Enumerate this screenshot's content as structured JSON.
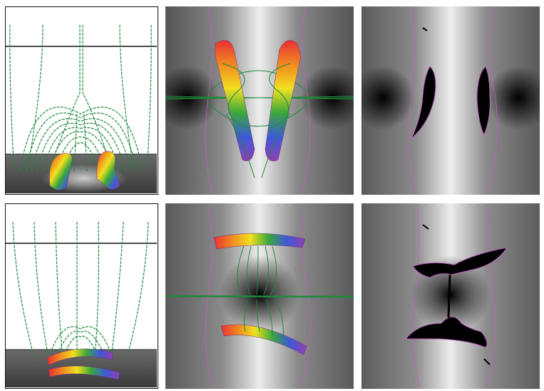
{
  "figure": {
    "rows": [
      {
        "id": "row-1",
        "panels": [
          "side-view",
          "top-view-field-lines",
          "top-view-shading"
        ]
      },
      {
        "id": "row-2",
        "panels": [
          "side-view",
          "top-view-field-lines",
          "top-view-shading"
        ]
      }
    ]
  },
  "colors": {
    "field_line": "#1e8a3c",
    "separatrix": "#c060c0",
    "background_white": "#ffffff",
    "shading_dark": "#000000",
    "shading_light": "#f2f2f2",
    "rainbow": [
      "#e83030",
      "#f08a20",
      "#f2e020",
      "#3aa83a",
      "#3c5ad8",
      "#9040b0"
    ]
  },
  "icons": {
    "flux_tube": "rainbow-twisted-flux-tube",
    "field_lines": "green-field-lines"
  }
}
